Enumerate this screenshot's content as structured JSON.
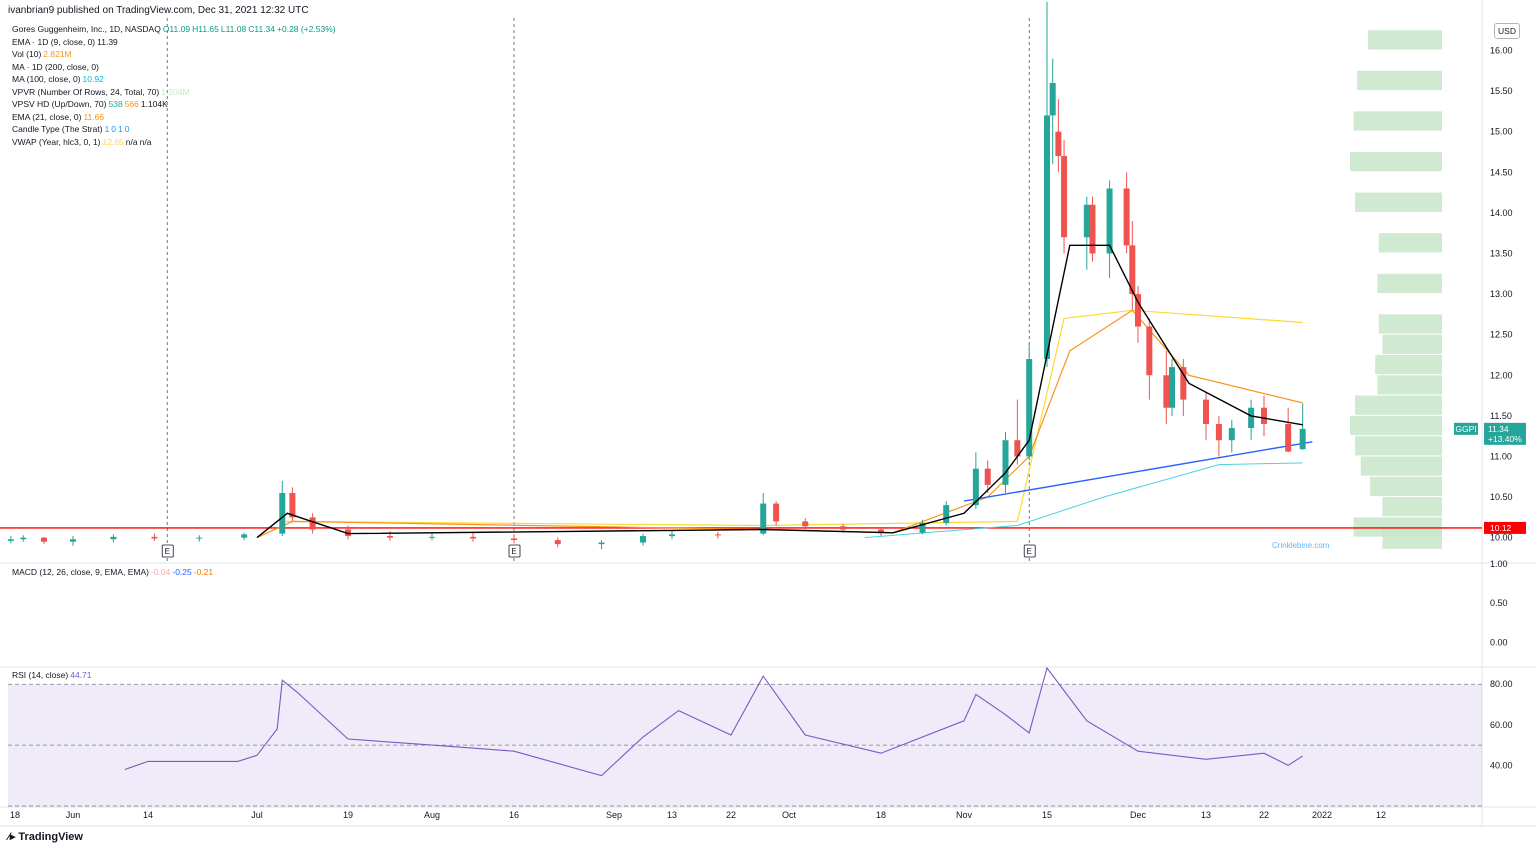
{
  "header": {
    "published": "ivanbrian9 published on TradingView.com, Dec 31, 2021 12:32 UTC"
  },
  "footer": {
    "brand": "TradingView"
  },
  "watermark": "Crinklebine.com",
  "currency": "USD",
  "ticker": {
    "symbol": "GGPI",
    "price": "11.34",
    "change": "+13.40%",
    "level_label": "10.12"
  },
  "legend": [
    {
      "label": "Gores Guggenheim, Inc., 1D, NASDAQ",
      "values": [
        {
          "t": "O11.09",
          "color": "#089981"
        },
        {
          "t": "H11.65",
          "color": "#089981"
        },
        {
          "t": "L11.08",
          "color": "#089981"
        },
        {
          "t": "C11.34",
          "color": "#089981"
        },
        {
          "t": "+0.28 (+2.53%)",
          "color": "#089981"
        }
      ]
    },
    {
      "label": "EMA · 1D (9, close, 0)",
      "values": [
        {
          "t": "11.39",
          "color": "#131722"
        }
      ]
    },
    {
      "label": "Vol (10)",
      "values": [
        {
          "t": "2.821M",
          "color": "#f7931a"
        }
      ]
    },
    {
      "label": "MA · 1D (200, close, 0)",
      "values": []
    },
    {
      "label": "MA (100, close, 0)",
      "values": [
        {
          "t": "10.92",
          "color": "#00bcd4"
        }
      ]
    },
    {
      "label": "VPVR (Number Of Rows, 24, Total, 70)",
      "values": [
        {
          "t": "1.204M",
          "color": "#c8e6c9"
        }
      ]
    },
    {
      "label": "VPSV HD (Up/Down, 70)",
      "values": [
        {
          "t": "538",
          "color": "#26a69a"
        },
        {
          "t": "566",
          "color": "#f7931a"
        },
        {
          "t": "1.104K",
          "color": "#131722"
        }
      ]
    },
    {
      "label": "EMA (21, close, 0)",
      "values": [
        {
          "t": "11.66",
          "color": "#f7931a"
        }
      ]
    },
    {
      "label": "Candle Type (The Strat)",
      "values": [
        {
          "t": "1",
          "color": "#2196f3"
        },
        {
          "t": "0",
          "color": "#2196f3"
        },
        {
          "t": "1",
          "color": "#2196f3"
        },
        {
          "t": "0",
          "color": "#2196f3"
        }
      ]
    },
    {
      "label": "VWAP (Year, hlc3, 0, 1)",
      "values": [
        {
          "t": "12.65",
          "color": "#ffd54f"
        },
        {
          "t": "n/a",
          "color": "#131722"
        },
        {
          "t": "n/a",
          "color": "#131722"
        }
      ]
    }
  ],
  "macd_legend": {
    "label": "MACD (12, 26, close, 9, EMA, EMA)",
    "values": [
      {
        "t": "-0.04",
        "color": "#f7a8a8"
      },
      {
        "t": "-0.25",
        "color": "#2962ff"
      },
      {
        "t": "-0.21",
        "color": "#f57c00"
      }
    ]
  },
  "rsi_legend": {
    "label": "RSI (14, close)",
    "values": [
      {
        "t": "44.71",
        "color": "#7e57c2"
      }
    ]
  },
  "colors": {
    "up": "#26a69a",
    "down": "#ef5350",
    "ema9": "#000000",
    "ema21": "#f7931a",
    "vwap": "#fdd835",
    "ma100": "#4dd0e1",
    "trend": "#2962ff",
    "support": "#ff0000",
    "rsi": "#7e57c2",
    "vp": "#c8e6c9"
  },
  "chart_data": [
    {
      "type": "candlestick",
      "title": "Gores Guggenheim, Inc., 1D, NASDAQ",
      "y_ticks": [
        "16.00",
        "15.50",
        "15.00",
        "14.50",
        "14.00",
        "13.50",
        "13.00",
        "12.50",
        "12.00",
        "11.50",
        "11.00",
        "10.50",
        "10.00"
      ],
      "ylim": [
        9.7,
        16.4
      ],
      "x_ticks": [
        {
          "label": "18",
          "d": "2021-05-18"
        },
        {
          "label": "Jun",
          "d": "2021-06-01"
        },
        {
          "label": "14",
          "d": "2021-06-14"
        },
        {
          "label": "Jul",
          "d": "2021-07-01"
        },
        {
          "label": "19",
          "d": "2021-07-19"
        },
        {
          "label": "Aug",
          "d": "2021-08-02"
        },
        {
          "label": "16",
          "d": "2021-08-16"
        },
        {
          "label": "Sep",
          "d": "2021-09-01"
        },
        {
          "label": "13",
          "d": "2021-09-13"
        },
        {
          "label": "22",
          "d": "2021-09-22"
        },
        {
          "label": "Oct",
          "d": "2021-10-01"
        },
        {
          "label": "18",
          "d": "2021-10-18"
        },
        {
          "label": "Nov",
          "d": "2021-11-01"
        },
        {
          "label": "15",
          "d": "2021-11-15"
        },
        {
          "label": "Dec",
          "d": "2021-12-01"
        },
        {
          "label": "13",
          "d": "2021-12-13"
        },
        {
          "label": "22",
          "d": "2021-12-22"
        },
        {
          "label": "2022",
          "d": "2022-01-03"
        },
        {
          "label": "12",
          "d": "2022-01-12"
        }
      ],
      "earnings_dates": [
        "2021-06-17",
        "2021-08-16",
        "2021-11-12"
      ],
      "ohlc": [
        [
          "2021-05-17",
          9.96,
          10.02,
          9.93,
          9.98
        ],
        [
          "2021-05-20",
          9.98,
          10.03,
          9.95,
          10.0
        ],
        [
          "2021-05-25",
          10.0,
          10.01,
          9.92,
          9.95
        ],
        [
          "2021-06-01",
          9.95,
          10.02,
          9.9,
          9.98
        ],
        [
          "2021-06-08",
          9.98,
          10.04,
          9.94,
          10.01
        ],
        [
          "2021-06-15",
          10.01,
          10.05,
          9.96,
          9.99
        ],
        [
          "2021-06-22",
          9.99,
          10.03,
          9.95,
          10.0
        ],
        [
          "2021-06-29",
          10.0,
          10.06,
          9.97,
          10.04
        ],
        [
          "2021-07-06",
          10.05,
          10.7,
          10.02,
          10.55
        ],
        [
          "2021-07-08",
          10.55,
          10.62,
          10.2,
          10.25
        ],
        [
          "2021-07-12",
          10.25,
          10.3,
          10.05,
          10.1
        ],
        [
          "2021-07-19",
          10.1,
          10.15,
          9.98,
          10.02
        ],
        [
          "2021-07-26",
          10.02,
          10.08,
          9.96,
          10.0
        ],
        [
          "2021-08-02",
          10.0,
          10.05,
          9.97,
          10.01
        ],
        [
          "2021-08-09",
          10.01,
          10.06,
          9.95,
          9.99
        ],
        [
          "2021-08-16",
          9.99,
          10.04,
          9.93,
          9.97
        ],
        [
          "2021-08-23",
          9.97,
          10.0,
          9.88,
          9.92
        ],
        [
          "2021-08-30",
          9.92,
          9.97,
          9.86,
          9.94
        ],
        [
          "2021-09-07",
          9.94,
          10.05,
          9.9,
          10.02
        ],
        [
          "2021-09-13",
          10.02,
          10.09,
          9.98,
          10.04
        ],
        [
          "2021-09-20",
          10.04,
          10.07,
          9.99,
          10.03
        ],
        [
          "2021-09-27",
          10.05,
          10.55,
          10.03,
          10.42
        ],
        [
          "2021-09-29",
          10.42,
          10.45,
          10.15,
          10.2
        ],
        [
          "2021-10-04",
          10.2,
          10.24,
          10.1,
          10.14
        ],
        [
          "2021-10-11",
          10.14,
          10.17,
          10.06,
          10.1
        ],
        [
          "2021-10-18",
          10.1,
          10.12,
          10.02,
          10.06
        ],
        [
          "2021-10-25",
          10.06,
          10.22,
          10.04,
          10.18
        ],
        [
          "2021-10-29",
          10.18,
          10.45,
          10.15,
          10.4
        ],
        [
          "2021-11-03",
          10.4,
          11.05,
          10.35,
          10.85
        ],
        [
          "2021-11-05",
          10.85,
          10.95,
          10.55,
          10.65
        ],
        [
          "2021-11-08",
          10.65,
          11.3,
          10.55,
          11.2
        ],
        [
          "2021-11-10",
          11.2,
          11.7,
          10.9,
          11.0
        ],
        [
          "2021-11-12",
          11.0,
          12.4,
          10.95,
          12.2
        ],
        [
          "2021-11-15",
          12.2,
          16.6,
          12.1,
          15.2
        ],
        [
          "2021-11-16",
          15.2,
          15.9,
          14.6,
          15.6
        ],
        [
          "2021-11-17",
          15.0,
          15.4,
          14.5,
          14.7
        ],
        [
          "2021-11-18",
          14.7,
          14.9,
          13.5,
          13.7
        ],
        [
          "2021-11-22",
          13.7,
          14.2,
          13.3,
          14.1
        ],
        [
          "2021-11-23",
          14.1,
          14.2,
          13.4,
          13.5
        ],
        [
          "2021-11-26",
          13.5,
          14.4,
          13.2,
          14.3
        ],
        [
          "2021-11-29",
          14.3,
          14.5,
          13.5,
          13.6
        ],
        [
          "2021-11-30",
          13.6,
          13.9,
          12.8,
          13.0
        ],
        [
          "2021-12-01",
          13.0,
          13.1,
          12.4,
          12.6
        ],
        [
          "2021-12-03",
          12.6,
          12.7,
          11.7,
          12.0
        ],
        [
          "2021-12-06",
          12.0,
          12.3,
          11.4,
          11.6
        ],
        [
          "2021-12-07",
          11.6,
          12.2,
          11.5,
          12.1
        ],
        [
          "2021-12-09",
          12.1,
          12.2,
          11.5,
          11.7
        ],
        [
          "2021-12-13",
          11.7,
          11.8,
          11.2,
          11.4
        ],
        [
          "2021-12-15",
          11.4,
          11.5,
          11.0,
          11.2
        ],
        [
          "2021-12-17",
          11.2,
          11.45,
          11.05,
          11.35
        ],
        [
          "2021-12-20",
          11.35,
          11.7,
          11.2,
          11.6
        ],
        [
          "2021-12-22",
          11.6,
          11.75,
          11.25,
          11.4
        ],
        [
          "2021-12-27",
          11.4,
          11.6,
          11.05,
          11.06
        ],
        [
          "2021-12-30",
          11.09,
          11.65,
          11.08,
          11.34
        ]
      ],
      "ema9": [
        [
          "2021-07-01",
          10.0
        ],
        [
          "2021-07-07",
          10.3
        ],
        [
          "2021-07-19",
          10.05
        ],
        [
          "2021-09-27",
          10.1
        ],
        [
          "2021-10-20",
          10.06
        ],
        [
          "2021-11-01",
          10.3
        ],
        [
          "2021-11-08",
          10.8
        ],
        [
          "2021-11-12",
          11.2
        ],
        [
          "2021-11-19",
          13.6
        ],
        [
          "2021-11-26",
          13.6
        ],
        [
          "2021-12-01",
          12.9
        ],
        [
          "2021-12-10",
          11.9
        ],
        [
          "2021-12-20",
          11.5
        ],
        [
          "2021-12-30",
          11.39
        ]
      ],
      "ema21": [
        [
          "2021-07-01",
          10.0
        ],
        [
          "2021-07-08",
          10.2
        ],
        [
          "2021-09-27",
          10.1
        ],
        [
          "2021-10-20",
          10.06
        ],
        [
          "2021-11-05",
          10.5
        ],
        [
          "2021-11-12",
          11.0
        ],
        [
          "2021-11-19",
          12.3
        ],
        [
          "2021-11-30",
          12.8
        ],
        [
          "2021-12-10",
          12.0
        ],
        [
          "2021-12-30",
          11.66
        ]
      ],
      "vwap": [
        [
          "2021-07-06",
          10.2
        ],
        [
          "2021-09-27",
          10.15
        ],
        [
          "2021-11-10",
          10.2
        ],
        [
          "2021-11-18",
          12.7
        ],
        [
          "2021-11-30",
          12.8
        ],
        [
          "2021-12-30",
          12.65
        ]
      ],
      "ma100": [
        [
          "2021-10-15",
          10.0
        ],
        [
          "2021-11-10",
          10.15
        ],
        [
          "2021-11-25",
          10.5
        ],
        [
          "2021-12-15",
          10.9
        ],
        [
          "2021-12-30",
          10.92
        ]
      ],
      "trendline": [
        [
          "2021-11-01",
          10.45
        ],
        [
          "2022-01-01",
          11.18
        ]
      ],
      "support_level": 10.12
    },
    {
      "type": "line",
      "title": "MACD (12, 26, close, 9, EMA, EMA)",
      "y_ticks": [
        "1.00",
        "0.50",
        "0.00"
      ],
      "ylim": [
        -0.3,
        1.0
      ]
    },
    {
      "type": "line",
      "title": "RSI (14, close)",
      "y_ticks": [
        "80.00",
        "60.00",
        "40.00"
      ],
      "ylim": [
        20,
        88
      ],
      "rsi": [
        [
          "2021-06-10",
          38
        ],
        [
          "2021-06-14",
          42
        ],
        [
          "2021-06-28",
          42
        ],
        [
          "2021-07-01",
          45
        ],
        [
          "2021-07-05",
          58
        ],
        [
          "2021-07-06",
          82
        ],
        [
          "2021-07-09",
          76
        ],
        [
          "2021-07-19",
          53
        ],
        [
          "2021-08-02",
          50
        ],
        [
          "2021-08-16",
          47
        ],
        [
          "2021-08-30",
          35
        ],
        [
          "2021-09-07",
          54
        ],
        [
          "2021-09-14",
          67
        ],
        [
          "2021-09-22",
          55
        ],
        [
          "2021-09-27",
          84
        ],
        [
          "2021-10-04",
          55
        ],
        [
          "2021-10-18",
          46
        ],
        [
          "2021-11-01",
          62
        ],
        [
          "2021-11-03",
          75
        ],
        [
          "2021-11-08",
          65
        ],
        [
          "2021-11-12",
          56
        ],
        [
          "2021-11-15",
          88
        ],
        [
          "2021-11-22",
          62
        ],
        [
          "2021-12-01",
          47
        ],
        [
          "2021-12-13",
          43
        ],
        [
          "2021-12-22",
          46
        ],
        [
          "2021-12-27",
          40
        ],
        [
          "2021-12-30",
          44.7
        ]
      ]
    }
  ]
}
